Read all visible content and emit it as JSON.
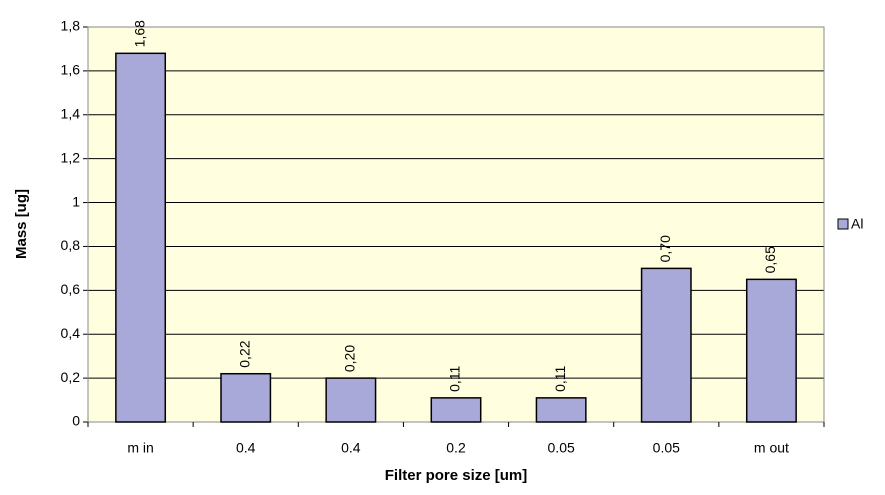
{
  "chart_data": {
    "type": "bar",
    "xlabel": "Filter pore size [um]",
    "ylabel": "Mass [ug]",
    "categories": [
      "m in",
      "0.4",
      "0.4",
      "0.2",
      "0.05",
      "0.05",
      "m out"
    ],
    "series": [
      {
        "name": "Al",
        "color": "#a9a9d9",
        "values": [
          1.68,
          0.22,
          0.2,
          0.11,
          0.11,
          0.7,
          0.65
        ],
        "value_labels": [
          "1,68",
          "0,22",
          "0,20",
          "0,11",
          "0,11",
          "0,70",
          "0,65"
        ]
      }
    ],
    "ylim": [
      0,
      1.8
    ],
    "yticks": [
      0,
      {
        "value": 0.2,
        "label": "0,2"
      },
      {
        "value": 0.4,
        "label": "0,4"
      },
      {
        "value": 0.6,
        "label": "0,6"
      },
      {
        "value": 0.8,
        "label": "0,8"
      },
      1,
      {
        "value": 1.2,
        "label": "1,2"
      },
      {
        "value": 1.4,
        "label": "1,4"
      },
      {
        "value": 1.6,
        "label": "1,6"
      },
      {
        "value": 1.8,
        "label": "1,8"
      }
    ],
    "grid": true,
    "legend": "right"
  }
}
